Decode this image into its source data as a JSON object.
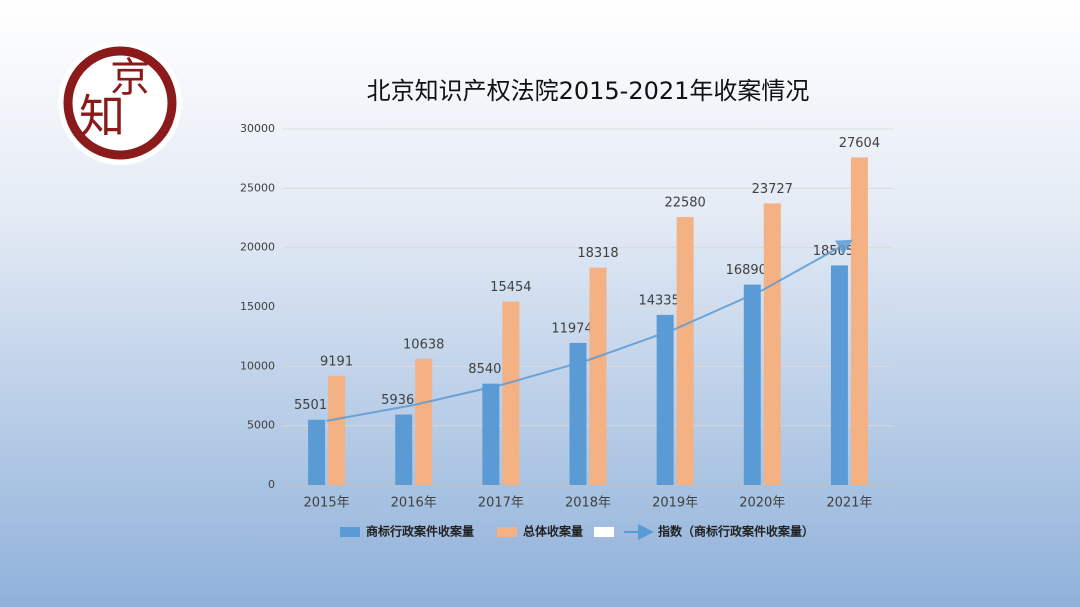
{
  "logo": {
    "chars": [
      "京",
      "知"
    ]
  },
  "chart_data": {
    "type": "bar",
    "title": "北京知识产权法院2015-2021年收案情况",
    "categories": [
      "2015年",
      "2016年",
      "2017年",
      "2018年",
      "2019年",
      "2020年",
      "2021年"
    ],
    "series": [
      {
        "name": "商标行政案件收案量",
        "color": "#5b9bd5",
        "values": [
          5501,
          5936,
          8540,
          11974,
          14335,
          16890,
          18505
        ]
      },
      {
        "name": "总体收案量",
        "color": "#f4b183",
        "values": [
          9191,
          10638,
          15454,
          18318,
          22580,
          23727,
          27604
        ]
      }
    ],
    "trendline": {
      "name": "指数（商标行政案件收案量）",
      "color": "#5b9bd5",
      "values": [
        5400,
        6745,
        8425,
        10520,
        13140,
        16410,
        20500
      ]
    },
    "ylim": [
      0,
      30000
    ],
    "yticks": [
      0,
      5000,
      10000,
      15000,
      20000,
      25000,
      30000
    ],
    "grid": true,
    "legend": "bottom"
  }
}
